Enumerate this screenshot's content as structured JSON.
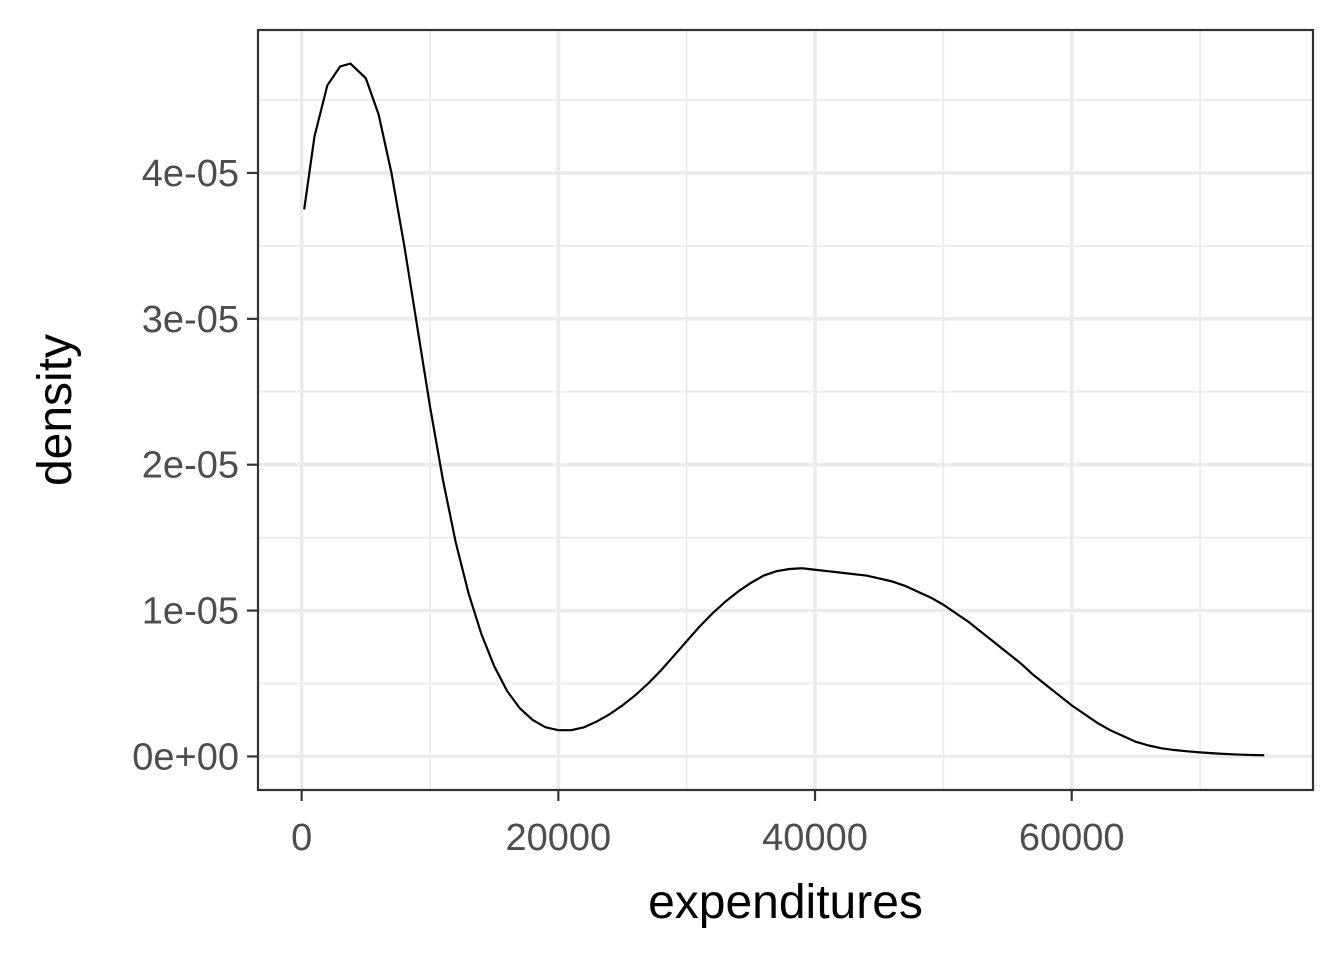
{
  "chart_data": {
    "type": "line",
    "geom": "density",
    "title": "",
    "xlabel": "expenditures",
    "ylabel": "density",
    "xlim": [
      -3400,
      78800
    ],
    "ylim": [
      -2.3e-06,
      4.98e-05
    ],
    "x_ticks": [
      0,
      20000,
      40000,
      60000
    ],
    "x_tick_labels": [
      "0",
      "20000",
      "40000",
      "60000"
    ],
    "x_minor_ticks": [
      10000,
      30000,
      50000,
      70000
    ],
    "y_ticks": [
      0,
      1e-05,
      2e-05,
      3e-05,
      4e-05
    ],
    "y_tick_labels": [
      "0e+00",
      "1e-05",
      "2e-05",
      "3e-05",
      "4e-05"
    ],
    "y_minor_ticks": [
      5e-06,
      1.5e-05,
      2.5e-05,
      3.5e-05,
      4.5e-05
    ],
    "grid": true,
    "legend": "none",
    "colors": {
      "line": "#000000",
      "grid": "#ebebeb",
      "panel_border": "#333333",
      "tick_text": "#4d4d4d"
    },
    "series": [
      {
        "x": [
          200,
          1000,
          2000,
          3000,
          3800,
          5000,
          6000,
          7000,
          8000,
          9000,
          10000,
          11000,
          12000,
          13000,
          14000,
          15000,
          16000,
          17000,
          18000,
          19000,
          20000,
          21000,
          22000,
          23000,
          24000,
          25000,
          26000,
          27000,
          28000,
          29000,
          30000,
          31000,
          32000,
          33000,
          34000,
          35000,
          36000,
          37000,
          38000,
          39000,
          40000,
          41000,
          42000,
          43000,
          44000,
          45000,
          46000,
          47000,
          48000,
          49000,
          50000,
          51000,
          52000,
          53000,
          54000,
          55000,
          56000,
          57000,
          58000,
          59000,
          60000,
          61000,
          62000,
          63000,
          64000,
          65000,
          66000,
          67000,
          68000,
          69000,
          70000,
          71000,
          72000,
          73000,
          74000,
          75000
        ],
        "y": [
          3.75e-05,
          4.25e-05,
          4.6e-05,
          4.73e-05,
          4.75e-05,
          4.65e-05,
          4.4e-05,
          4e-05,
          3.5e-05,
          2.95e-05,
          2.4e-05,
          1.9e-05,
          1.47e-05,
          1.12e-05,
          8.4e-06,
          6.2e-06,
          4.5e-06,
          3.3e-06,
          2.5e-06,
          2e-06,
          1.8e-06,
          1.8e-06,
          2e-06,
          2.4e-06,
          2.9e-06,
          3.5e-06,
          4.2e-06,
          5e-06,
          5.9e-06,
          6.9e-06,
          7.9e-06,
          8.9e-06,
          9.8e-06,
          1.06e-05,
          1.13e-05,
          1.19e-05,
          1.24e-05,
          1.27e-05,
          1.285e-05,
          1.29e-05,
          1.28e-05,
          1.27e-05,
          1.26e-05,
          1.25e-05,
          1.24e-05,
          1.22e-05,
          1.2e-05,
          1.17e-05,
          1.13e-05,
          1.09e-05,
          1.04e-05,
          9.8e-06,
          9.2e-06,
          8.5e-06,
          7.8e-06,
          7.1e-06,
          6.4e-06,
          5.6e-06,
          4.9e-06,
          4.2e-06,
          3.5e-06,
          2.9e-06,
          2.3e-06,
          1.8e-06,
          1.4e-06,
          1e-06,
          7.5e-07,
          5.6e-07,
          4.4e-07,
          3.5e-07,
          2.8e-07,
          2.2e-07,
          1.7e-07,
          1.3e-07,
          1e-07,
          8e-08
        ]
      }
    ]
  }
}
